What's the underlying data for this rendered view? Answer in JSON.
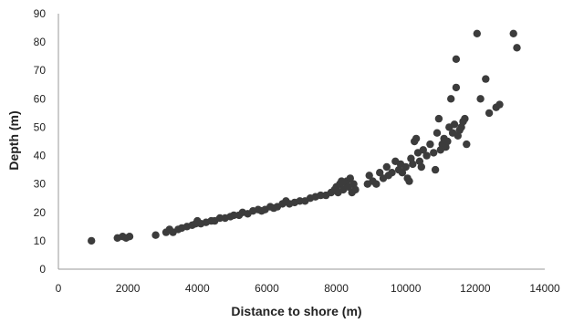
{
  "chart_data": {
    "type": "scatter",
    "title": "",
    "xlabel": "Distance to shore (m)",
    "ylabel": "Depth (m)",
    "xlim": [
      0,
      14000
    ],
    "ylim": [
      0,
      90
    ],
    "x_ticks": [
      "0",
      "2000",
      "4000",
      "6000",
      "8000",
      "10000",
      "12000",
      "14000"
    ],
    "y_ticks": [
      "0",
      "10",
      "20",
      "30",
      "40",
      "50",
      "60",
      "70",
      "80",
      "90"
    ],
    "grid": false,
    "legend": "none",
    "point_color": "#3c3c3c",
    "series": [
      {
        "points": [
          [
            950,
            10
          ],
          [
            1700,
            11
          ],
          [
            1850,
            11.5
          ],
          [
            1950,
            11
          ],
          [
            2050,
            11.5
          ],
          [
            2800,
            12
          ],
          [
            3100,
            13
          ],
          [
            3200,
            14
          ],
          [
            3300,
            13
          ],
          [
            3450,
            14
          ],
          [
            3550,
            14.5
          ],
          [
            3700,
            15
          ],
          [
            3850,
            15.5
          ],
          [
            3950,
            16
          ],
          [
            4000,
            17
          ],
          [
            4100,
            16
          ],
          [
            4250,
            16.5
          ],
          [
            4400,
            17
          ],
          [
            4500,
            17
          ],
          [
            4650,
            18
          ],
          [
            4800,
            18
          ],
          [
            4950,
            18.5
          ],
          [
            5050,
            19
          ],
          [
            5200,
            19
          ],
          [
            5300,
            20
          ],
          [
            5450,
            19.5
          ],
          [
            5600,
            20.5
          ],
          [
            5750,
            21
          ],
          [
            5850,
            20.5
          ],
          [
            5950,
            21
          ],
          [
            6100,
            22
          ],
          [
            6200,
            21.5
          ],
          [
            6300,
            22
          ],
          [
            6450,
            23
          ],
          [
            6550,
            24
          ],
          [
            6650,
            23
          ],
          [
            6800,
            23.5
          ],
          [
            6950,
            24
          ],
          [
            7100,
            24
          ],
          [
            7250,
            25
          ],
          [
            7400,
            25.5
          ],
          [
            7550,
            26
          ],
          [
            7700,
            26
          ],
          [
            7850,
            27
          ],
          [
            7950,
            28
          ],
          [
            8000,
            29
          ],
          [
            8050,
            27
          ],
          [
            8100,
            30
          ],
          [
            8150,
            31
          ],
          [
            8200,
            28
          ],
          [
            8250,
            30.5
          ],
          [
            8300,
            31
          ],
          [
            8350,
            29
          ],
          [
            8400,
            32
          ],
          [
            8450,
            27
          ],
          [
            8500,
            30
          ],
          [
            8550,
            28
          ],
          [
            8900,
            30
          ],
          [
            8950,
            33
          ],
          [
            9050,
            31
          ],
          [
            9150,
            30
          ],
          [
            9250,
            34
          ],
          [
            9350,
            32
          ],
          [
            9450,
            36
          ],
          [
            9500,
            33
          ],
          [
            9600,
            34
          ],
          [
            9700,
            38
          ],
          [
            9800,
            35
          ],
          [
            9850,
            37
          ],
          [
            9900,
            34
          ],
          [
            10000,
            36
          ],
          [
            10050,
            32
          ],
          [
            10100,
            31
          ],
          [
            10150,
            39
          ],
          [
            10200,
            37
          ],
          [
            10250,
            45
          ],
          [
            10300,
            46
          ],
          [
            10350,
            41
          ],
          [
            10400,
            38
          ],
          [
            10450,
            36
          ],
          [
            10500,
            42
          ],
          [
            10600,
            40
          ],
          [
            10700,
            44
          ],
          [
            10800,
            41
          ],
          [
            10850,
            35
          ],
          [
            10900,
            48
          ],
          [
            10950,
            53
          ],
          [
            11000,
            42
          ],
          [
            11050,
            44
          ],
          [
            11100,
            46
          ],
          [
            11150,
            43
          ],
          [
            11200,
            45
          ],
          [
            11250,
            50
          ],
          [
            11300,
            60
          ],
          [
            11350,
            48
          ],
          [
            11400,
            51
          ],
          [
            11450,
            64
          ],
          [
            11500,
            47
          ],
          [
            11550,
            49
          ],
          [
            11600,
            50
          ],
          [
            11650,
            52
          ],
          [
            11700,
            53
          ],
          [
            11750,
            44
          ],
          [
            11450,
            74
          ],
          [
            12050,
            83
          ],
          [
            12150,
            60
          ],
          [
            12300,
            67
          ],
          [
            12400,
            55
          ],
          [
            12600,
            57
          ],
          [
            12700,
            58
          ],
          [
            13100,
            83
          ],
          [
            13200,
            78
          ]
        ]
      }
    ]
  }
}
